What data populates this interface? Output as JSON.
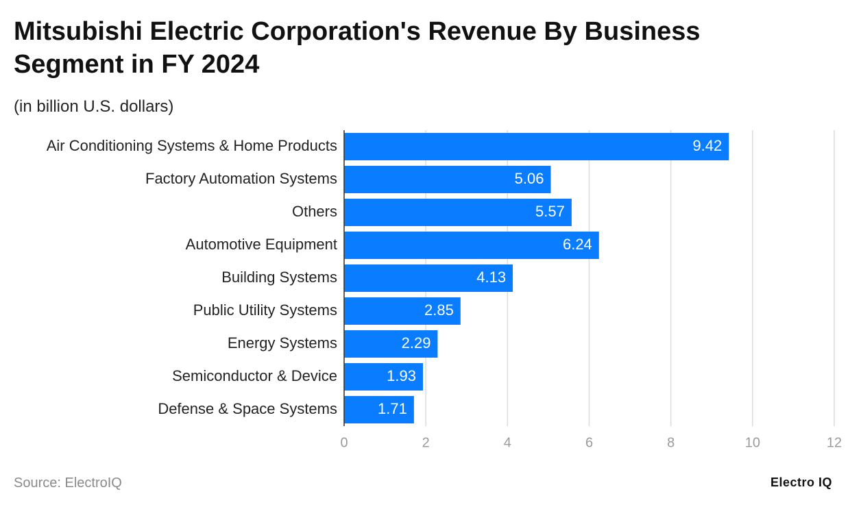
{
  "chart_data": {
    "type": "bar",
    "orientation": "horizontal",
    "title": "Mitsubishi Electric Corporation's Revenue By Business Segment in FY 2024",
    "subtitle": "(in billion U.S. dollars)",
    "categories": [
      "Air Conditioning Systems & Home Products",
      "Factory Automation Systems",
      "Others",
      "Automotive Equipment",
      "Building Systems",
      "Public Utility Systems",
      "Energy Systems",
      "Semiconductor & Device",
      "Defense & Space Systems"
    ],
    "values": [
      9.42,
      5.06,
      5.57,
      6.24,
      4.13,
      2.85,
      2.29,
      1.93,
      1.71
    ],
    "color": "#0a7cff",
    "xlim": [
      0,
      12
    ],
    "xticks": [
      0,
      2,
      4,
      6,
      8,
      10,
      12
    ],
    "grid": true,
    "source": "Source: ElectroIQ",
    "brand": "Electro IQ"
  }
}
